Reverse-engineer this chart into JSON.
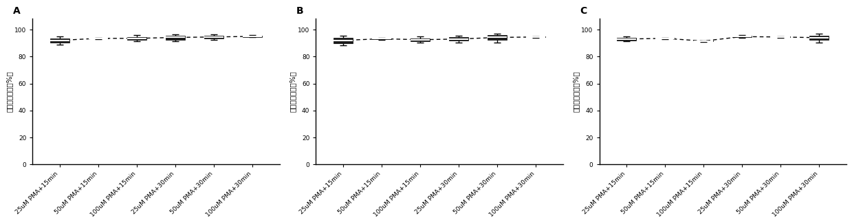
{
  "panels": [
    "A",
    "B",
    "C"
  ],
  "ylabel": "拷贝数下降率（%）",
  "xlabel_labels": [
    "25uM PMA+15min",
    "50uM PMA+15min",
    "100uM PMA+15min",
    "25uM PMA+30min",
    "50uM PMA+30min",
    "100uM PMA+30min"
  ],
  "ylim": [
    0,
    108
  ],
  "yticks": [
    0,
    20,
    40,
    60,
    80,
    100
  ],
  "panel_A": {
    "means": [
      92.0,
      93.5,
      93.5,
      94.2,
      94.5,
      95.0
    ],
    "q1": [
      90.5,
      93.2,
      92.5,
      92.5,
      93.5,
      94.5
    ],
    "q3": [
      93.5,
      93.8,
      94.5,
      95.5,
      95.5,
      95.5
    ],
    "whislo": [
      89.0,
      93.0,
      91.5,
      91.5,
      92.5,
      94.2
    ],
    "whishi": [
      95.0,
      94.0,
      96.0,
      96.5,
      96.5,
      95.8
    ]
  },
  "panel_B": {
    "means": [
      92.0,
      93.2,
      92.5,
      93.0,
      94.2,
      94.5
    ],
    "q1": [
      90.0,
      92.8,
      91.5,
      91.8,
      92.5,
      94.2
    ],
    "q3": [
      94.0,
      93.6,
      93.5,
      94.2,
      96.0,
      94.8
    ],
    "whislo": [
      88.5,
      92.3,
      90.5,
      90.5,
      90.5,
      94.0
    ],
    "whishi": [
      95.5,
      94.0,
      95.0,
      95.5,
      97.0,
      95.0
    ]
  },
  "panel_C": {
    "means": [
      93.0,
      93.5,
      91.5,
      94.8,
      94.5,
      94.0
    ],
    "q1": [
      92.0,
      93.3,
      91.2,
      94.3,
      94.3,
      92.5
    ],
    "q3": [
      94.0,
      93.7,
      91.8,
      95.3,
      94.7,
      95.5
    ],
    "whislo": [
      91.2,
      93.0,
      91.0,
      93.8,
      94.0,
      90.5
    ],
    "whishi": [
      95.0,
      94.0,
      92.0,
      96.0,
      95.0,
      97.0
    ]
  },
  "box_facecolor": "#1a1a1a",
  "box_edgecolor": "#000000",
  "whisker_color": "#000000",
  "median_color": "#ffffff",
  "dash_color": "#000000",
  "background_color": "#ffffff",
  "panel_label_fontsize": 10,
  "tick_fontsize": 6.5,
  "ylabel_fontsize": 7.5,
  "box_width": 0.5,
  "linewidth": 1.0
}
